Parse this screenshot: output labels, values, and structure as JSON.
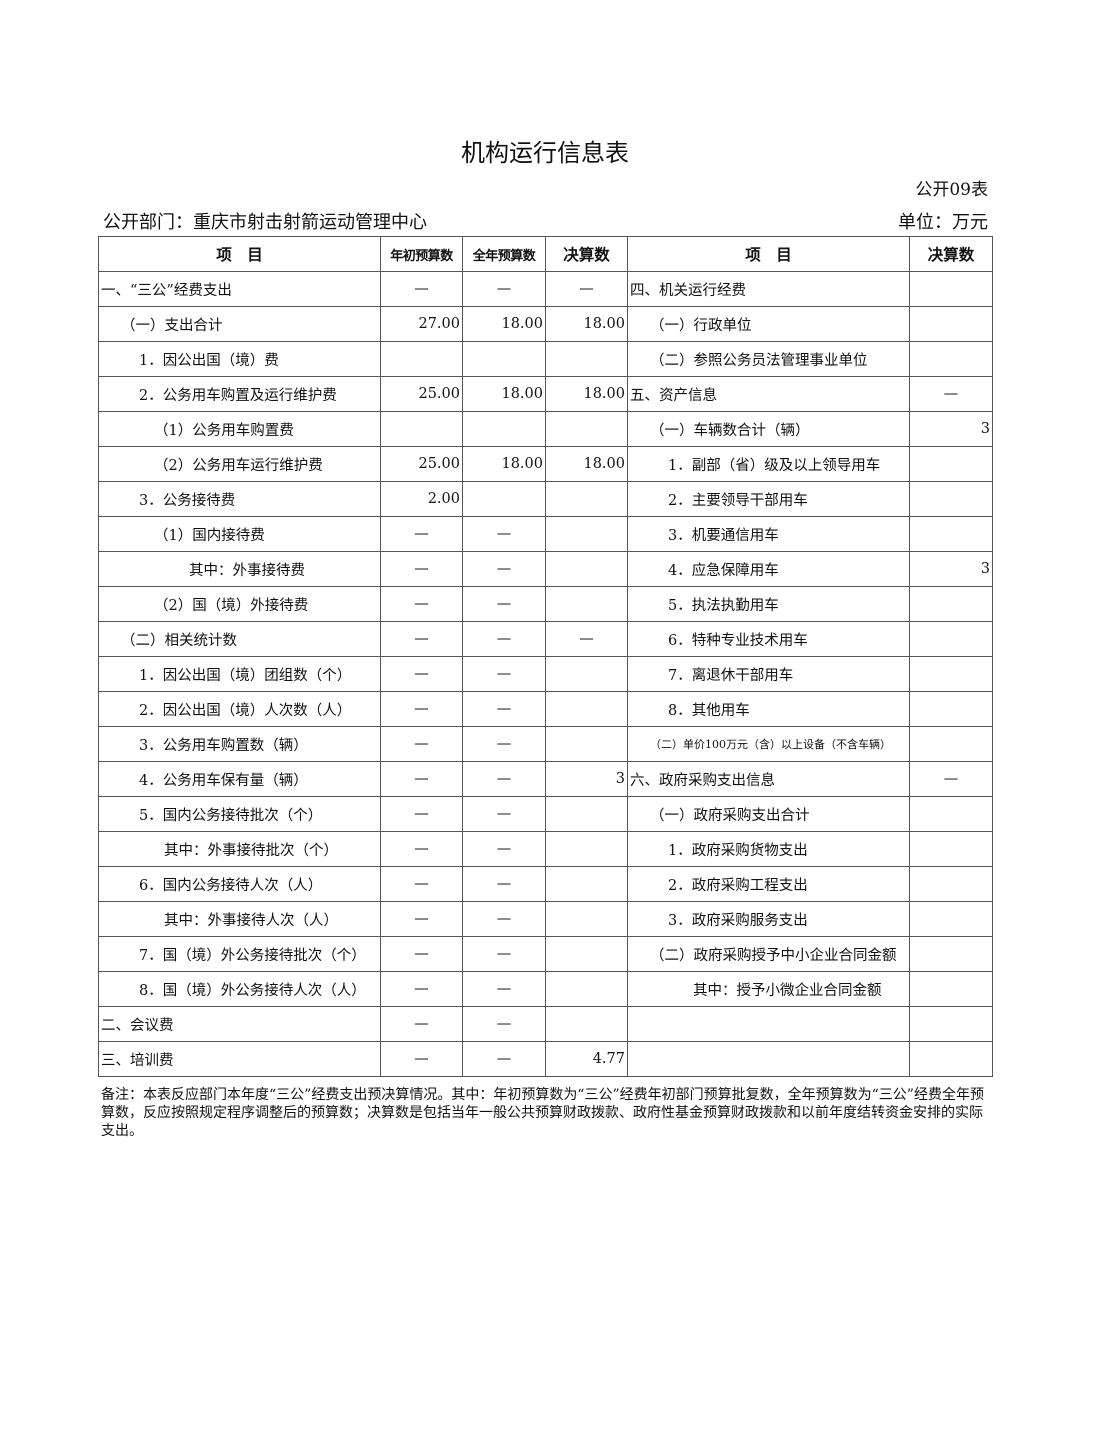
{
  "title": "机构运行信息表",
  "table_no": "公开09表",
  "department": "公开部门：重庆市射击射箭运动管理中心",
  "unit": "单位：万元",
  "headers": {
    "item": "项　目",
    "initial_budget": "年初预算数",
    "annual_budget": "全年预算数",
    "final": "决算数",
    "item2": "项　目",
    "final2": "决算数"
  },
  "rows": [
    {
      "l": "一、“三公”经费支出",
      "li": 0,
      "a": "—",
      "b": "—",
      "c": "—",
      "r": "四、机关运行经费",
      "ri": 0,
      "v": ""
    },
    {
      "l": "（一）支出合计",
      "li": 1,
      "a": "27.00",
      "b": "18.00",
      "c": "18.00",
      "r": "（一）行政单位",
      "ri": 1,
      "v": ""
    },
    {
      "l": "1．因公出国（境）费",
      "li": 2,
      "a": "",
      "b": "",
      "c": "",
      "r": "（二）参照公务员法管理事业单位",
      "ri": 1,
      "v": ""
    },
    {
      "l": "2．公务用车购置及运行维护费",
      "li": 2,
      "a": "25.00",
      "b": "18.00",
      "c": "18.00",
      "r": "五、资产信息",
      "ri": 0,
      "v": "—"
    },
    {
      "l": "（1）公务用车购置费",
      "li": 3,
      "a": "",
      "b": "",
      "c": "",
      "r": "（一）车辆数合计（辆）",
      "ri": 1,
      "v": "3"
    },
    {
      "l": "（2）公务用车运行维护费",
      "li": 3,
      "a": "25.00",
      "b": "18.00",
      "c": "18.00",
      "r": "1．副部（省）级及以上领导用车",
      "ri": 2,
      "v": ""
    },
    {
      "l": "3．公务接待费",
      "li": 2,
      "a": "2.00",
      "b": "",
      "c": "",
      "r": "2．主要领导干部用车",
      "ri": 2,
      "v": ""
    },
    {
      "l": "（1）国内接待费",
      "li": 3,
      "a": "—",
      "b": "—",
      "c": "",
      "r": "3．机要通信用车",
      "ri": 2,
      "v": ""
    },
    {
      "l": "其中：外事接待费",
      "li": 5,
      "a": "—",
      "b": "—",
      "c": "",
      "r": "4．应急保障用车",
      "ri": 2,
      "v": "3"
    },
    {
      "l": "（2）国（境）外接待费",
      "li": 3,
      "a": "—",
      "b": "—",
      "c": "",
      "r": "5．执法执勤用车",
      "ri": 2,
      "v": ""
    },
    {
      "l": "（二）相关统计数",
      "li": 1,
      "a": "—",
      "b": "—",
      "c": "—",
      "r": "6．特种专业技术用车",
      "ri": 2,
      "v": ""
    },
    {
      "l": "1．因公出国（境）团组数（个）",
      "li": 2,
      "a": "—",
      "b": "—",
      "c": "",
      "r": "7．离退休干部用车",
      "ri": 2,
      "v": ""
    },
    {
      "l": "2．因公出国（境）人次数（人）",
      "li": 2,
      "a": "—",
      "b": "—",
      "c": "",
      "r": "8．其他用车",
      "ri": 2,
      "v": ""
    },
    {
      "l": "3．公务用车购置数（辆）",
      "li": 2,
      "a": "—",
      "b": "—",
      "c": "",
      "r": "（二）单价100万元（含）以上设备（不含车辆）",
      "ri": 6,
      "v": ""
    },
    {
      "l": "4．公务用车保有量（辆）",
      "li": 2,
      "a": "—",
      "b": "—",
      "c": "3",
      "r": "六、政府采购支出信息",
      "ri": 0,
      "v": "—"
    },
    {
      "l": "5．国内公务接待批次（个）",
      "li": 2,
      "a": "—",
      "b": "—",
      "c": "",
      "r": "（一）政府采购支出合计",
      "ri": 1,
      "v": ""
    },
    {
      "l": "其中：外事接待批次（个）",
      "li": 4,
      "a": "—",
      "b": "—",
      "c": "",
      "r": "1．政府采购货物支出",
      "ri": 2,
      "v": ""
    },
    {
      "l": "6．国内公务接待人次（人）",
      "li": 2,
      "a": "—",
      "b": "—",
      "c": "",
      "r": "2．政府采购工程支出",
      "ri": 2,
      "v": ""
    },
    {
      "l": "其中：外事接待人次（人）",
      "li": 4,
      "a": "—",
      "b": "—",
      "c": "",
      "r": "3．政府采购服务支出",
      "ri": 2,
      "v": ""
    },
    {
      "l": "7．国（境）外公务接待批次（个）",
      "li": 2,
      "a": "—",
      "b": "—",
      "c": "",
      "r": "（二）政府采购授予中小企业合同金额",
      "ri": 1,
      "v": ""
    },
    {
      "l": "8．国（境）外公务接待人次（人）",
      "li": 2,
      "a": "—",
      "b": "—",
      "c": "",
      "r": "其中：授予小微企业合同金额",
      "ri": 4,
      "v": ""
    },
    {
      "l": "二、会议费",
      "li": 0,
      "a": "—",
      "b": "—",
      "c": "",
      "r": "",
      "ri": 0,
      "v": ""
    },
    {
      "l": "三、培训费",
      "li": 0,
      "a": "—",
      "b": "—",
      "c": "4.77",
      "r": "",
      "ri": 0,
      "v": ""
    }
  ],
  "note": "备注：本表反应部门本年度“三公”经费支出预决算情况。其中：年初预算数为“三公”经费年初部门预算批复数，全年预算数为“三公”经费全年预算数，反应按照规定程序调整后的预算数；决算数是包括当年一般公共预算财政拨款、政府性基金预算财政拨款和以前年度结转资金安排的实际支出。"
}
